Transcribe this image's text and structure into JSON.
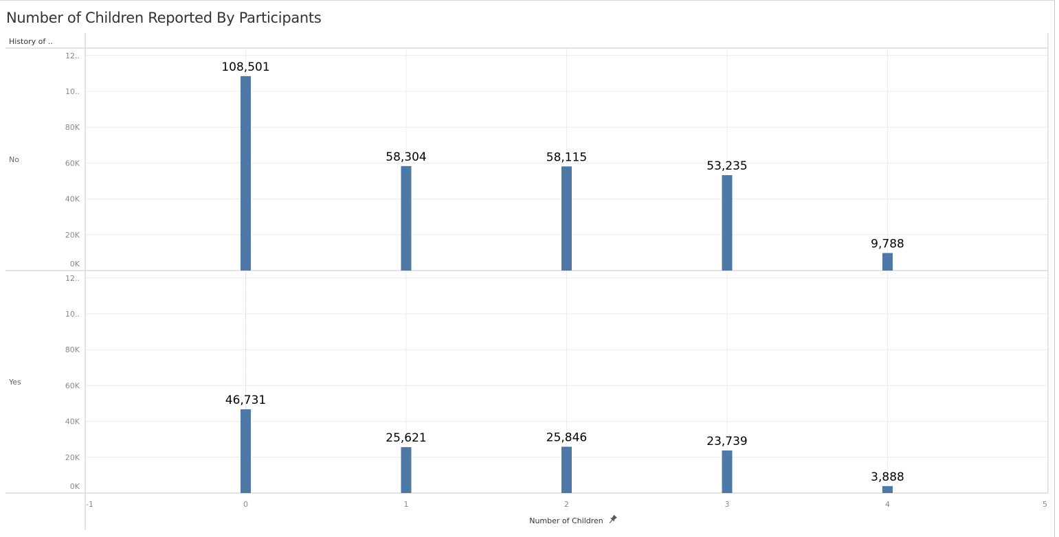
{
  "page": {
    "title": "Number of Children Reported By Participants",
    "row_header": "History of .."
  },
  "colors": {
    "bar": "#4e79a7",
    "grid": "#ececec",
    "axis": "#c8c8c8"
  },
  "chart_data": {
    "type": "bar",
    "title": "Number of Children Reported By Participants",
    "xlabel": "Number of Children",
    "ylabel": "",
    "row_field_label": "History of ..",
    "x": [
      0,
      1,
      2,
      3,
      4
    ],
    "xlim": [
      -1,
      5
    ],
    "x_ticks": [
      "-1",
      "0",
      "1",
      "2",
      "3",
      "4",
      "5"
    ],
    "ylim": [
      0,
      120000
    ],
    "y_ticks": [
      "0K",
      "20K",
      "40K",
      "60K",
      "80K",
      "10..",
      "12.."
    ],
    "grid": true,
    "legend": "none",
    "x_pinned_icon": "pin-icon",
    "series": [
      {
        "name": "No",
        "values": [
          108501,
          58304,
          58115,
          53235,
          9788
        ],
        "labels": [
          "108,501",
          "58,304",
          "58,115",
          "53,235",
          "9,788"
        ]
      },
      {
        "name": "Yes",
        "values": [
          46731,
          25621,
          25846,
          23739,
          3888
        ],
        "labels": [
          "46,731",
          "25,621",
          "25,846",
          "23,739",
          "3,888"
        ]
      }
    ]
  }
}
